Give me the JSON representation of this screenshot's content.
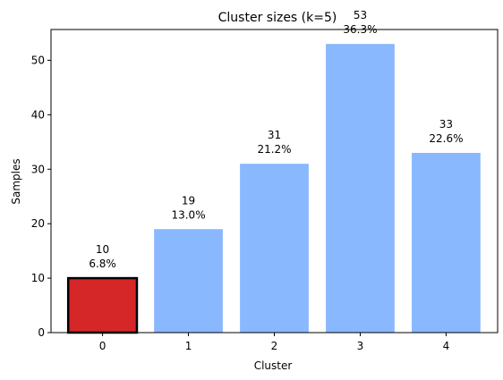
{
  "chart_data": {
    "type": "bar",
    "title": "Cluster sizes (k=5)",
    "xlabel": "Cluster",
    "ylabel": "Samples",
    "categories": [
      "0",
      "1",
      "2",
      "3",
      "4"
    ],
    "values": [
      10,
      19,
      31,
      53,
      33
    ],
    "bar_labels": [
      [
        "10",
        "6.8%"
      ],
      [
        "19",
        "13.0%"
      ],
      [
        "31",
        "21.2%"
      ],
      [
        "53",
        "36.3%"
      ],
      [
        "33",
        "22.6%"
      ]
    ],
    "ylim": [
      0,
      55.65
    ],
    "yticks": [
      0,
      10,
      20,
      30,
      40,
      50
    ],
    "grid": false,
    "highlighted_category": "0",
    "colors": {
      "default_bar": "#89b8ff",
      "highlight_bar": "#d62728",
      "highlight_edge": "#000000"
    }
  }
}
